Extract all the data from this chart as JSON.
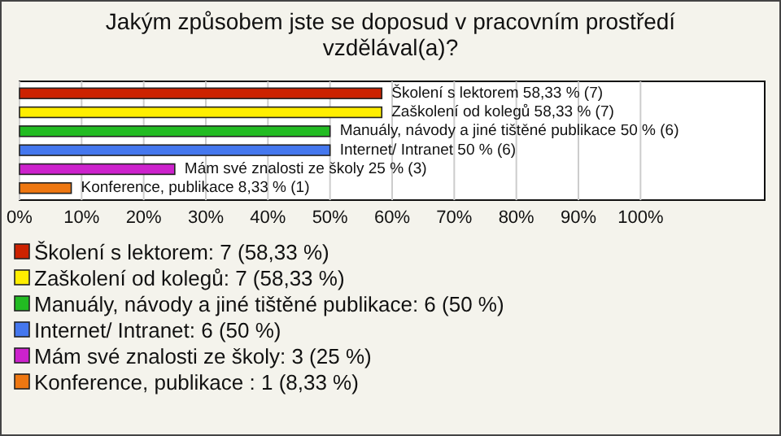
{
  "chart_data": {
    "type": "bar",
    "orientation": "horizontal",
    "title": "Jakým způsobem jste se doposud v pracovním prostředí vzdělával(a)?",
    "categories": [
      null,
      null,
      null,
      null,
      null,
      null
    ],
    "series": [
      {
        "name": "Školení s lektorem: 7 (58,33 %)",
        "color": "#cc2200",
        "values": [
          58.33,
          null,
          null,
          null,
          null,
          null
        ],
        "value_labels": [
          "Školení s lektorem 58,33 % (7)",
          null,
          null,
          null,
          null,
          null
        ]
      },
      {
        "name": "Zaškolení od kolegů: 7 (58,33 %)",
        "color": "#ffee00",
        "values": [
          null,
          58.33,
          null,
          null,
          null,
          null
        ],
        "value_labels": [
          null,
          "Zaškolení od kolegů 58,33 % (7)",
          null,
          null,
          null,
          null
        ]
      },
      {
        "name": "Manuály, návody a jiné tištěné publikace: 6 (50 %)",
        "color": "#22bb22",
        "values": [
          null,
          null,
          50,
          null,
          null,
          null
        ],
        "value_labels": [
          null,
          null,
          "Manuály, návody a jiné tištěné publikace 50 % (6)",
          null,
          null,
          null
        ]
      },
      {
        "name": "Internet/ Intranet: 6 (50 %)",
        "color": "#4477ee",
        "values": [
          null,
          null,
          null,
          50,
          null,
          null
        ],
        "value_labels": [
          null,
          null,
          null,
          "Internet/ Intranet 50 % (6)",
          null,
          null
        ]
      },
      {
        "name": "Mám své znalosti ze školy: 3 (25 %)",
        "color": "#cc22cc",
        "values": [
          null,
          null,
          null,
          null,
          25,
          null
        ],
        "value_labels": [
          null,
          null,
          null,
          null,
          "Mám své znalosti ze školy 25 % (3)",
          null
        ]
      },
      {
        "name": "Konference, publikace : 1 (8,33 %)",
        "color": "#ee7711",
        "values": [
          null,
          null,
          null,
          null,
          null,
          8.33
        ],
        "value_labels": [
          null,
          null,
          null,
          null,
          null,
          "Konference, publikace  8,33 % (1)"
        ]
      }
    ],
    "xlim": [
      0,
      120
    ],
    "xticks": [
      {
        "value": 0,
        "label": "0%"
      },
      {
        "value": 10,
        "label": "10%"
      },
      {
        "value": 20,
        "label": "20%"
      },
      {
        "value": 30,
        "label": "30%"
      },
      {
        "value": 40,
        "label": "40%"
      },
      {
        "value": 50,
        "label": "50%"
      },
      {
        "value": 60,
        "label": "60%"
      },
      {
        "value": 70,
        "label": "70%"
      },
      {
        "value": 80,
        "label": "80%"
      },
      {
        "value": 90,
        "label": "90%"
      },
      {
        "value": 100,
        "label": "100%"
      }
    ],
    "grid": "x",
    "legend": "bottom"
  }
}
